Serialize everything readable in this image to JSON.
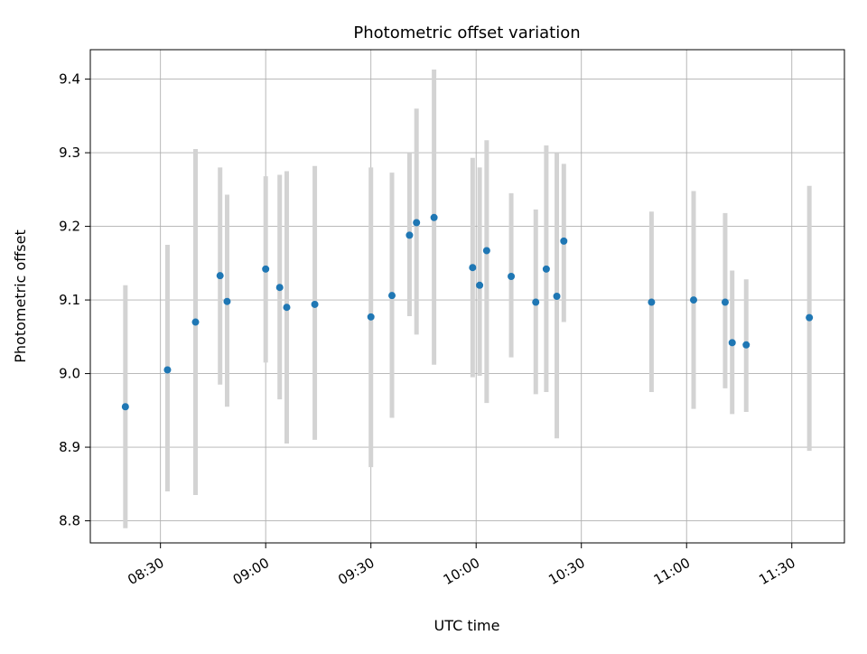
{
  "chart_data": {
    "type": "scatter",
    "title": "Photometric offset variation",
    "xlabel": "UTC time",
    "ylabel": "Photometric offset",
    "x_tick_labels": [
      "08:30",
      "09:00",
      "09:30",
      "10:00",
      "10:30",
      "11:00",
      "11:30"
    ],
    "y_tick_labels": [
      "8.8",
      "8.9",
      "9.0",
      "9.1",
      "9.2",
      "9.3",
      "9.4"
    ],
    "xlim": [
      "08:10",
      "11:45"
    ],
    "ylim": [
      8.77,
      9.44
    ],
    "grid": true,
    "legend": "none",
    "marker_color": "#1f77b4",
    "errorbar_color": "#d3d3d3",
    "grid_color": "#b0b0b0",
    "points": [
      {
        "time": "08:20",
        "value": 8.955,
        "err_low": 8.79,
        "err_high": 9.12
      },
      {
        "time": "08:32",
        "value": 9.005,
        "err_low": 8.84,
        "err_high": 9.175
      },
      {
        "time": "08:40",
        "value": 9.07,
        "err_low": 8.835,
        "err_high": 9.305
      },
      {
        "time": "08:47",
        "value": 9.133,
        "err_low": 8.985,
        "err_high": 9.28
      },
      {
        "time": "08:49",
        "value": 9.098,
        "err_low": 8.955,
        "err_high": 9.243
      },
      {
        "time": "09:00",
        "value": 9.142,
        "err_low": 9.015,
        "err_high": 9.268
      },
      {
        "time": "09:04",
        "value": 9.117,
        "err_low": 8.965,
        "err_high": 9.27
      },
      {
        "time": "09:06",
        "value": 9.09,
        "err_low": 8.905,
        "err_high": 9.275
      },
      {
        "time": "09:14",
        "value": 9.094,
        "err_low": 8.91,
        "err_high": 9.282
      },
      {
        "time": "09:30",
        "value": 9.077,
        "err_low": 8.873,
        "err_high": 9.28
      },
      {
        "time": "09:36",
        "value": 9.106,
        "err_low": 8.94,
        "err_high": 9.273
      },
      {
        "time": "09:41",
        "value": 9.188,
        "err_low": 9.078,
        "err_high": 9.3
      },
      {
        "time": "09:43",
        "value": 9.205,
        "err_low": 9.053,
        "err_high": 9.36
      },
      {
        "time": "09:48",
        "value": 9.212,
        "err_low": 9.012,
        "err_high": 9.413
      },
      {
        "time": "09:59",
        "value": 9.144,
        "err_low": 8.995,
        "err_high": 9.293
      },
      {
        "time": "10:01",
        "value": 9.12,
        "err_low": 8.997,
        "err_high": 9.28
      },
      {
        "time": "10:03",
        "value": 9.167,
        "err_low": 8.96,
        "err_high": 9.317
      },
      {
        "time": "10:10",
        "value": 9.132,
        "err_low": 9.022,
        "err_high": 9.245
      },
      {
        "time": "10:17",
        "value": 9.097,
        "err_low": 8.972,
        "err_high": 9.223
      },
      {
        "time": "10:20",
        "value": 9.142,
        "err_low": 8.975,
        "err_high": 9.31
      },
      {
        "time": "10:23",
        "value": 9.105,
        "err_low": 8.912,
        "err_high": 9.3
      },
      {
        "time": "10:25",
        "value": 9.18,
        "err_low": 9.07,
        "err_high": 9.285
      },
      {
        "time": "10:50",
        "value": 9.097,
        "err_low": 8.975,
        "err_high": 9.22
      },
      {
        "time": "11:02",
        "value": 9.1,
        "err_low": 8.952,
        "err_high": 9.248
      },
      {
        "time": "11:11",
        "value": 9.097,
        "err_low": 8.98,
        "err_high": 9.218
      },
      {
        "time": "11:13",
        "value": 9.042,
        "err_low": 8.945,
        "err_high": 9.14
      },
      {
        "time": "11:17",
        "value": 9.039,
        "err_low": 8.948,
        "err_high": 9.128
      },
      {
        "time": "11:35",
        "value": 9.076,
        "err_low": 8.895,
        "err_high": 9.255
      }
    ]
  }
}
